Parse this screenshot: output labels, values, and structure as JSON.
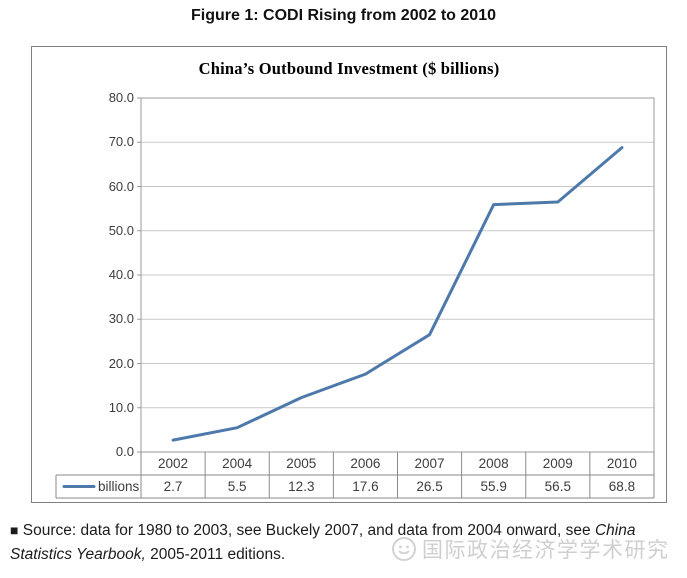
{
  "figure_title": "Figure 1: CODI Rising from 2002 to 2010",
  "chart_data": {
    "type": "line",
    "title": "China’s Outbound Investment ($ billions)",
    "categories": [
      "2002",
      "2004",
      "2005",
      "2006",
      "2007",
      "2008",
      "2009",
      "2010"
    ],
    "series": [
      {
        "name": "billions",
        "values": [
          2.7,
          5.5,
          12.3,
          17.6,
          26.5,
          55.9,
          56.5,
          68.8
        ]
      }
    ],
    "ylim": [
      0,
      80
    ],
    "ytick_step": 10,
    "ytick_labels": [
      "0.0",
      "10.0",
      "20.0",
      "30.0",
      "40.0",
      "50.0",
      "60.0",
      "70.0",
      "80.0"
    ],
    "grid": true,
    "legend_position": "data-table-left",
    "data_table_shown": true,
    "xlabel": "",
    "ylabel": ""
  },
  "colors": {
    "line": "#4d79ab",
    "grid": "#c9c9c9",
    "plot_border": "#9b9b9b",
    "table_border": "#8a8a8a",
    "frame_border": "#7f7f7f",
    "watermark": "#cfcfcf"
  },
  "source_note": {
    "lines": [
      [
        {
          "text": "■",
          "italic": false,
          "bullet": true
        },
        {
          "text": " Source: data for 1980 to 2003, see Buckely 2007, and data from 2004 onward, see ",
          "italic": false
        },
        {
          "text": "China",
          "italic": true
        }
      ],
      [
        {
          "text": "Statistics Yearbook,",
          "italic": true
        },
        {
          "text": " 2005-2011 editions.",
          "italic": false
        }
      ]
    ]
  },
  "watermark": {
    "icon": "smiley-face-icon",
    "text": "国际政治经济学学术研究"
  }
}
